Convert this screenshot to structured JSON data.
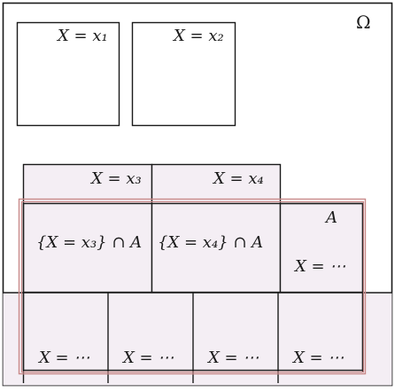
{
  "diagram": {
    "omega_label": "Ω",
    "cells": {
      "x1": "X = x₁",
      "x2": "X = x₂",
      "x3": "X = x₃",
      "x4": "X = x₄",
      "x3_cap_a": "{X = x₃} ∩ A",
      "x4_cap_a": "{X = x₄} ∩ A",
      "a_label": "A",
      "right_dots": "X = ⋯",
      "bottom_dots_1": "X = ⋯",
      "bottom_dots_2": "X = ⋯",
      "bottom_dots_3": "X = ⋯",
      "bottom_dots_4": "X = ⋯"
    },
    "colors": {
      "cell_fill": "#f4eef4",
      "outline": "#1a1a1a",
      "set_a_border": "#c98a8a"
    }
  }
}
